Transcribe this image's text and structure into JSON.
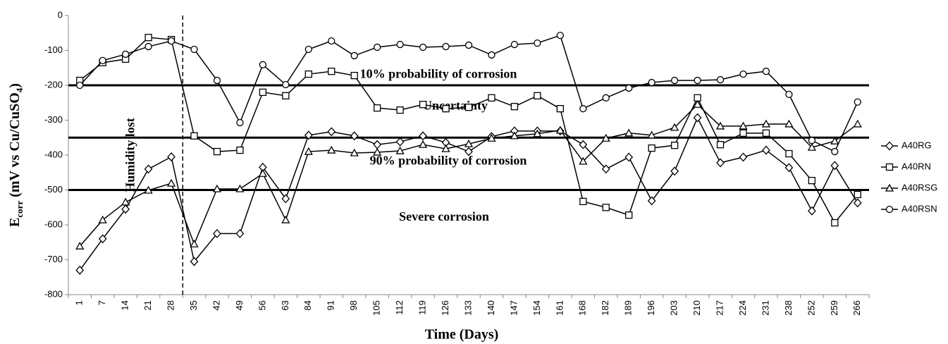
{
  "chart_data": {
    "type": "line",
    "ylabel": [
      {
        "text": "E"
      },
      {
        "text": "corr",
        "sub": true
      },
      {
        "text": " (mV vs Cu/CuSO"
      },
      {
        "text": "4",
        "sub": true
      },
      {
        "text": ")"
      }
    ],
    "xlabel": "Time (Days)",
    "categories": [
      "1",
      "7",
      "14",
      "21",
      "28",
      "35",
      "42",
      "49",
      "56",
      "63",
      "84",
      "91",
      "98",
      "105",
      "112",
      "119",
      "126",
      "133",
      "140",
      "147",
      "154",
      "161",
      "168",
      "182",
      "189",
      "196",
      "203",
      "210",
      "217",
      "224",
      "231",
      "238",
      "252",
      "259",
      "266"
    ],
    "series": [
      {
        "name": "A40RG",
        "color": "#000000",
        "marker": "diamond",
        "values": [
          -730,
          -640,
          -555,
          -440,
          -405,
          -705,
          -625,
          -625,
          -435,
          -525,
          -343,
          -333,
          -345,
          -370,
          -362,
          -345,
          -364,
          -390,
          -347,
          -331,
          -331,
          -331,
          -370,
          -440,
          -406,
          -531,
          -446,
          -293,
          -422,
          -406,
          -386,
          -436,
          -560,
          -430,
          -537
        ]
      },
      {
        "name": "A40RN",
        "color": "#000000",
        "marker": "square",
        "values": [
          -186,
          -135,
          -125,
          -63,
          -69,
          -345,
          -390,
          -386,
          -220,
          -230,
          -168,
          -160,
          -172,
          -265,
          -271,
          -255,
          -267,
          -263,
          -236,
          -261,
          -230,
          -267,
          -533,
          -550,
          -572,
          -380,
          -372,
          -236,
          -370,
          -337,
          -337,
          -396,
          -473,
          -594,
          -513
        ]
      },
      {
        "name": "A40RSG",
        "color": "#000000",
        "marker": "triangle",
        "values": [
          -661,
          -586,
          -535,
          -501,
          -481,
          -655,
          -497,
          -497,
          -453,
          -586,
          -390,
          -386,
          -394,
          -392,
          -388,
          -370,
          -382,
          -368,
          -352,
          -345,
          -339,
          -329,
          -418,
          -352,
          -337,
          -343,
          -321,
          -255,
          -317,
          -317,
          -311,
          -311,
          -378,
          -360,
          -311
        ]
      },
      {
        "name": "A40RSN",
        "color": "#000000",
        "marker": "circle",
        "values": [
          -200,
          -129,
          -111,
          -89,
          -73,
          -97,
          -186,
          -307,
          -141,
          -198,
          -97,
          -73,
          -115,
          -91,
          -83,
          -91,
          -89,
          -85,
          -113,
          -83,
          -79,
          -57,
          -267,
          -236,
          -208,
          -192,
          -186,
          -186,
          -184,
          -168,
          -160,
          -226,
          -358,
          -390,
          -248
        ]
      }
    ],
    "ylim": [
      -800,
      0
    ],
    "yticks": [
      -800,
      -700,
      -600,
      -500,
      -400,
      -300,
      -200,
      -100,
      0
    ],
    "thresholds": [
      -200,
      -350,
      -500
    ],
    "zones": [
      "10% probability of corrosion",
      "Uncertainty",
      "90% probability of corrosion",
      "Severe corrosion"
    ],
    "divider": {
      "label": "Humidity lost",
      "after_category": "28"
    },
    "legend": "right"
  }
}
